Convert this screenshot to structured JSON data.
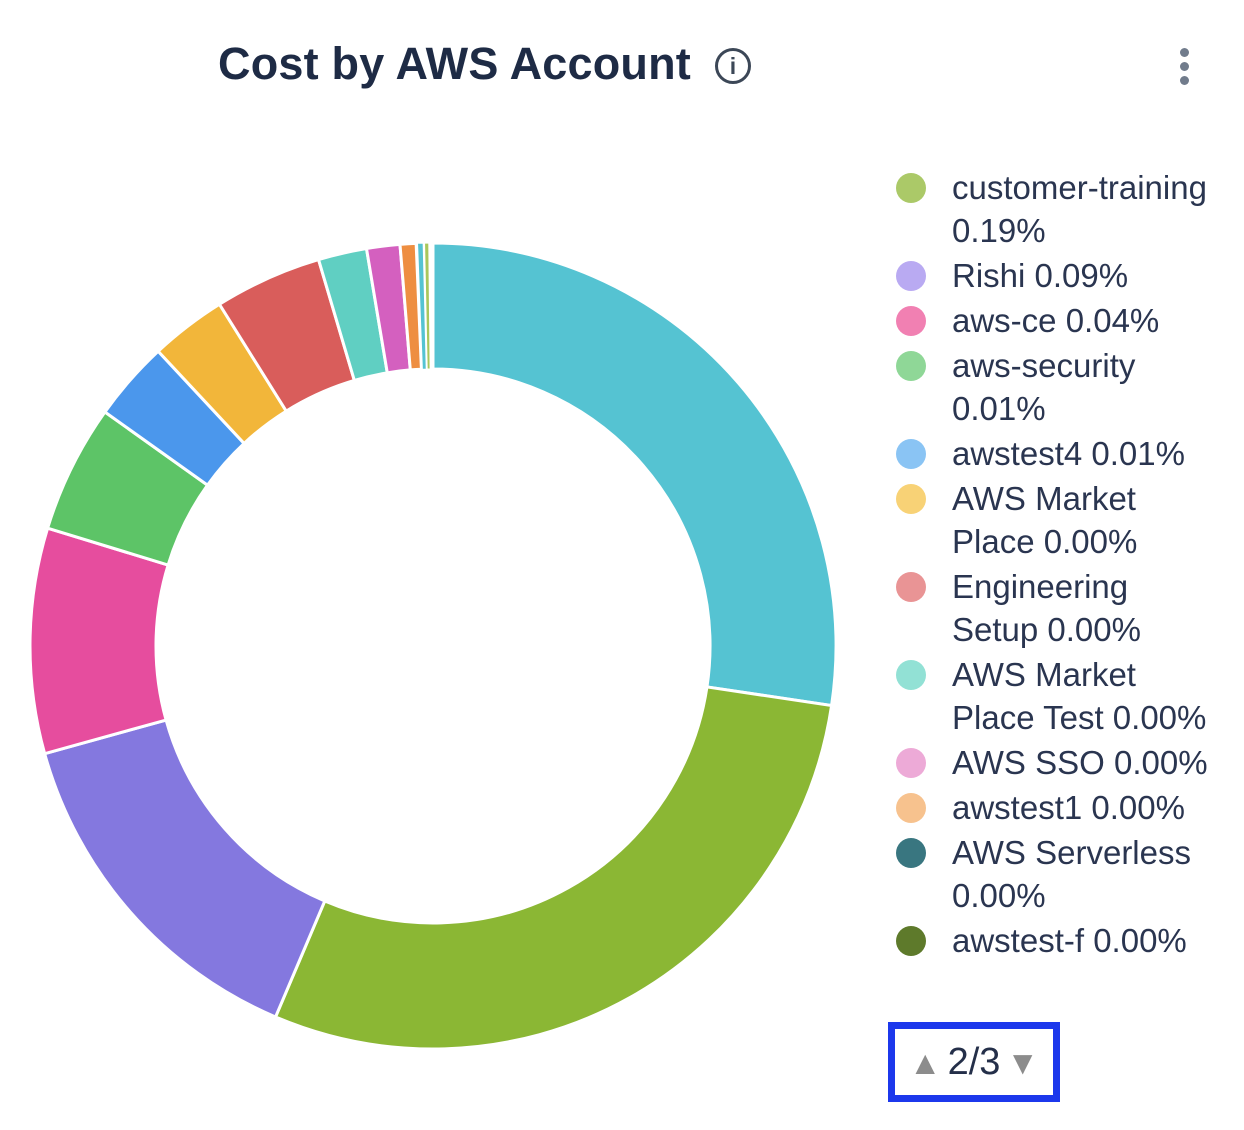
{
  "header": {
    "title": "Cost by AWS Account",
    "info_glyph": "i"
  },
  "chart_data": {
    "type": "pie",
    "donut": true,
    "title": "Cost by AWS Account",
    "start_angle_deg": 0,
    "legend_position": "right",
    "segments": [
      {
        "color": "#55c3d2",
        "start_deg": 0,
        "end_deg": 98.5
      },
      {
        "color": "#8bb734",
        "start_deg": 98.5,
        "end_deg": 203
      },
      {
        "color": "#8478df",
        "start_deg": 203,
        "end_deg": 254.5
      },
      {
        "color": "#e64d9e",
        "start_deg": 254.5,
        "end_deg": 287
      },
      {
        "color": "#5dc467",
        "start_deg": 287,
        "end_deg": 305.5
      },
      {
        "color": "#4b97ec",
        "start_deg": 305.5,
        "end_deg": 317
      },
      {
        "color": "#f2b63a",
        "start_deg": 317,
        "end_deg": 328
      },
      {
        "color": "#d95d5b",
        "start_deg": 328,
        "end_deg": 343.5
      },
      {
        "color": "#60cfc2",
        "start_deg": 343.5,
        "end_deg": 350.5
      },
      {
        "color": "#d460bf",
        "start_deg": 350.5,
        "end_deg": 355.3
      },
      {
        "color": "#ee8e41",
        "start_deg": 355.3,
        "end_deg": 357.6
      },
      {
        "color": "#55c3d2",
        "start_deg": 357.8,
        "end_deg": 358.6
      },
      {
        "color": "#a9c75c",
        "start_deg": 358.8,
        "end_deg": 359.4
      }
    ]
  },
  "legend": {
    "items": [
      {
        "label": "customer-training",
        "pct": "0.19%",
        "display": "customer-training 0.19%",
        "color": "#abc968"
      },
      {
        "label": "Rishi",
        "pct": "0.09%",
        "display": "Rishi 0.09%",
        "color": "#b9aaf2"
      },
      {
        "label": "aws-ce",
        "pct": "0.04%",
        "display": "aws-ce 0.04%",
        "color": "#f180b2"
      },
      {
        "label": "aws-security",
        "pct": "0.01%",
        "display": "aws-security 0.01%",
        "color": "#8fd797"
      },
      {
        "label": "awstest4",
        "pct": "0.01%",
        "display": "awstest4 0.01%",
        "color": "#8ac4f4"
      },
      {
        "label": "AWS Market Place",
        "pct": "0.00%",
        "display": "AWS Market Place 0.00%",
        "color": "#f8d276"
      },
      {
        "label": "Engineering Setup",
        "pct": "0.00%",
        "display": "Engineering Setup 0.00%",
        "color": "#e99495"
      },
      {
        "label": "AWS Market Place Test",
        "pct": "0.00%",
        "display": "AWS Market Place Test 0.00%",
        "color": "#92e1d5"
      },
      {
        "label": "AWS SSO",
        "pct": "0.00%",
        "display": "AWS SSO 0.00%",
        "color": "#edaad7"
      },
      {
        "label": "awstest1",
        "pct": "0.00%",
        "display": "awstest1 0.00%",
        "color": "#f7c28e"
      },
      {
        "label": "AWS Serverless",
        "pct": "0.00%",
        "display": "AWS Serverless 0.00%",
        "color": "#397680"
      }
    ],
    "partial_item": {
      "display": "awstest-f 0.00%",
      "color": "#5e7a2b"
    },
    "pagination": {
      "up_glyph": "▲",
      "label": "2/3",
      "down_glyph": "▼"
    }
  }
}
